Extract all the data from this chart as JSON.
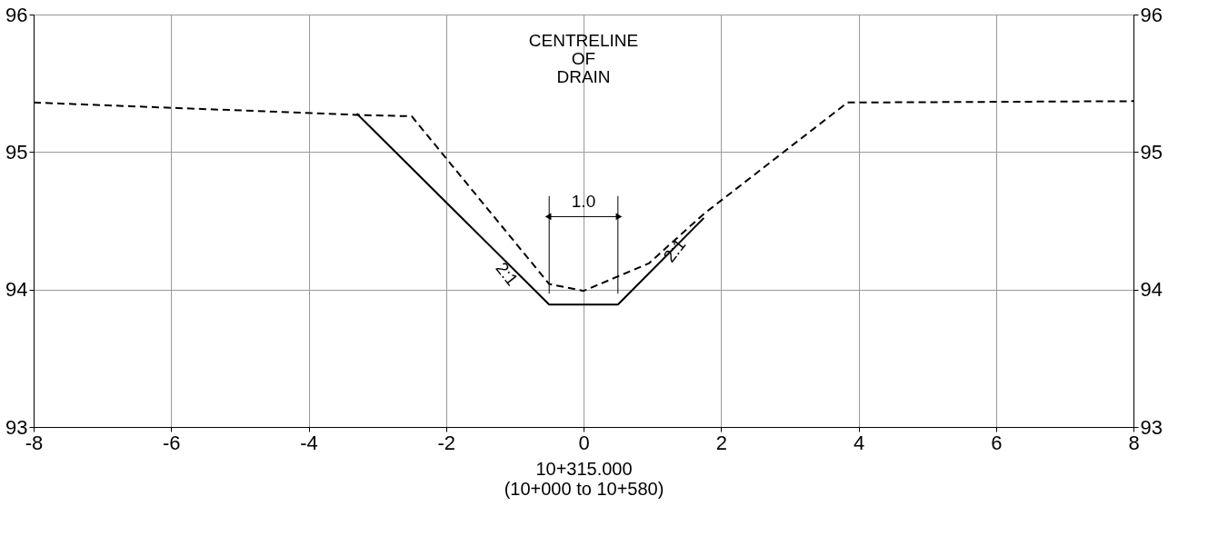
{
  "chart_data": {
    "type": "line",
    "xlabel": "10+315.000\n(10+000 to 10+580)",
    "series": [
      {
        "color": "#000000",
        "line_style": "solid",
        "x": [
          -3.3,
          -0.5,
          0.5,
          1.75
        ],
        "values": [
          95.28,
          93.89,
          93.89,
          94.52
        ]
      },
      {
        "color": "#000000",
        "line_style": "dashed",
        "x": [
          -8,
          -3.3,
          -2.5,
          -0.5,
          0,
          0.95,
          1.75,
          3.84,
          8
        ],
        "values": [
          95.36,
          95.27,
          95.26,
          94.04,
          93.99,
          94.19,
          94.55,
          95.36,
          95.37
        ]
      }
    ],
    "xlim": [
      -8,
      8
    ],
    "xticks": [
      -8,
      -6,
      -4,
      -2,
      0,
      2,
      4,
      6,
      8
    ],
    "ylim": [
      93,
      96
    ],
    "yticks": [
      93,
      94,
      95,
      96
    ],
    "y2lim": [
      93,
      96
    ],
    "y2ticks": [
      93,
      94,
      95,
      96
    ],
    "grid": true,
    "legend": false,
    "marker": "none",
    "annotations": [
      "CENTRELINE\nOF\nDRAIN",
      "1.0",
      "2:1",
      "2:1"
    ]
  }
}
